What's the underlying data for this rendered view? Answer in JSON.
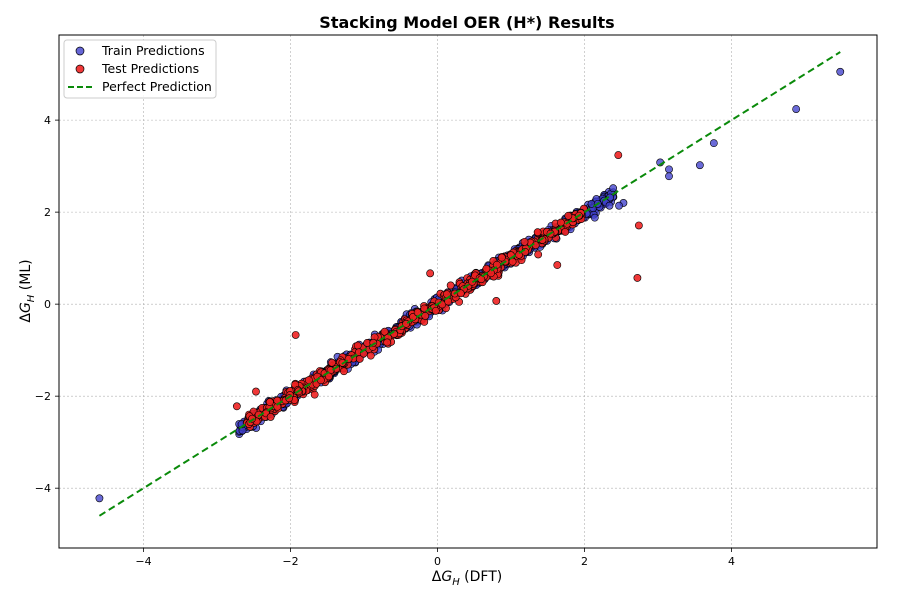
{
  "chart_data": {
    "type": "scatter",
    "title": "Stacking Model OER (H*) Results",
    "xlabel": "ΔG_H (DFT)",
    "ylabel": "ΔG_H (ML)",
    "xlim": [
      -5.15,
      5.98
    ],
    "ylim": [
      -5.3,
      5.85
    ],
    "xticks": [
      -4,
      -2,
      0,
      2,
      4
    ],
    "yticks": [
      -4,
      -2,
      0,
      2,
      4
    ],
    "tick_labels": {
      "x": [
        "−4",
        "−2",
        "0",
        "2",
        "4"
      ],
      "y": [
        "−4",
        "−2",
        "0",
        "2",
        "4"
      ]
    },
    "grid": true,
    "legend_position": "top-left",
    "series": [
      {
        "name": "Train Predictions",
        "color": "#4040cc",
        "generated": {
          "density_note": "dense band along diagonal from about -2.7 to 2.4",
          "count": 900,
          "x_range": [
            -2.7,
            2.4
          ],
          "spread": 0.13
        },
        "points": [
          [
            -4.6,
            -4.22
          ],
          [
            5.48,
            5.05
          ],
          [
            4.88,
            4.24
          ],
          [
            3.76,
            3.5
          ],
          [
            3.57,
            3.02
          ],
          [
            3.15,
            2.93
          ],
          [
            3.15,
            2.78
          ],
          [
            3.03,
            3.08
          ],
          [
            2.39,
            2.52
          ],
          [
            2.53,
            2.2
          ],
          [
            2.47,
            2.14
          ],
          [
            2.34,
            2.14
          ],
          [
            2.18,
            2.18
          ],
          [
            2.14,
            1.88
          ],
          [
            1.96,
            1.97
          ]
        ]
      },
      {
        "name": "Test Predictions",
        "color": "#ee2222",
        "generated": {
          "density_note": "dense band along diagonal from about -2.6 to 2.0",
          "count": 500,
          "x_range": [
            -2.6,
            2.0
          ],
          "spread": 0.14
        },
        "points": [
          [
            2.46,
            3.24
          ],
          [
            2.74,
            1.71
          ],
          [
            2.72,
            0.57
          ],
          [
            -1.93,
            -0.67
          ],
          [
            -2.73,
            -2.22
          ],
          [
            -2.47,
            -1.9
          ],
          [
            1.63,
            0.85
          ],
          [
            0.8,
            0.07
          ],
          [
            -0.1,
            0.67
          ],
          [
            -0.27,
            -0.18
          ],
          [
            1.78,
            1.92
          ],
          [
            1.37,
            1.08
          ]
        ]
      },
      {
        "name": "Perfect Prediction",
        "type": "line",
        "color": "#0a8a0a",
        "dashed": true,
        "x": [
          -4.6,
          5.48
        ],
        "y": [
          -4.6,
          5.48
        ]
      }
    ]
  }
}
